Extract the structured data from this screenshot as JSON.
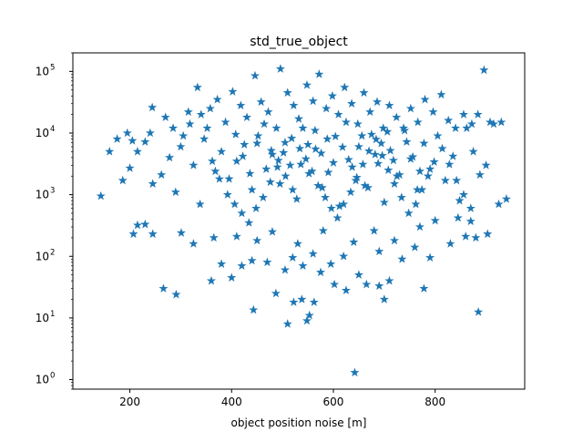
{
  "chart_data": {
    "type": "scatter",
    "title": "std_true_object",
    "xlabel": "object position noise [m]",
    "ylabel": "",
    "xlim": [
      88,
      976
    ],
    "ylim": [
      0.7,
      200000
    ],
    "yscale": "log",
    "grid": false,
    "marker": "star",
    "color": "#1f77b4",
    "x_ticks": [
      200,
      400,
      600,
      800
    ],
    "x_tick_labels": [
      "200",
      "400",
      "600",
      "800"
    ],
    "y_ticks": [
      1,
      10,
      100,
      1000,
      10000,
      100000
    ],
    "y_tick_labels": [
      {
        "base": "10",
        "exp": "0"
      },
      {
        "base": "10",
        "exp": "1"
      },
      {
        "base": "10",
        "exp": "2"
      },
      {
        "base": "10",
        "exp": "3"
      },
      {
        "base": "10",
        "exp": "4"
      },
      {
        "base": "10",
        "exp": "5"
      }
    ],
    "series": [
      {
        "points": [
          [
            642,
            1.3
          ],
          [
            510,
            8
          ],
          [
            548,
            9
          ],
          [
            553,
            11
          ],
          [
            443,
            13.5
          ],
          [
            885,
            12.5
          ],
          [
            266,
            30
          ],
          [
            291,
            24
          ],
          [
            522,
            18
          ],
          [
            538,
            20
          ],
          [
            562,
            18
          ],
          [
            625,
            28
          ],
          [
            700,
            20
          ],
          [
            778,
            30
          ],
          [
            487,
            25
          ],
          [
            602,
            35
          ],
          [
            665,
            35
          ],
          [
            690,
            33
          ],
          [
            360,
            40
          ],
          [
            400,
            45
          ],
          [
            650,
            50
          ],
          [
            710,
            40
          ],
          [
            505,
            60
          ],
          [
            575,
            55
          ],
          [
            540,
            70
          ],
          [
            595,
            75
          ],
          [
            420,
            70
          ],
          [
            380,
            75
          ],
          [
            470,
            80
          ],
          [
            520,
            95
          ],
          [
            620,
            100
          ],
          [
            560,
            110
          ],
          [
            440,
            85
          ],
          [
            690,
            120
          ],
          [
            735,
            90
          ],
          [
            760,
            140
          ],
          [
            790,
            95
          ],
          [
            830,
            160
          ],
          [
            880,
            200
          ],
          [
            903,
            230
          ],
          [
            230,
            330
          ],
          [
            245,
            230
          ],
          [
            301,
            240
          ],
          [
            325,
            160
          ],
          [
            207,
            230
          ],
          [
            215,
            320
          ],
          [
            365,
            200
          ],
          [
            410,
            210
          ],
          [
            450,
            180
          ],
          [
            480,
            250
          ],
          [
            530,
            160
          ],
          [
            580,
            260
          ],
          [
            640,
            170
          ],
          [
            680,
            260
          ],
          [
            720,
            180
          ],
          [
            770,
            300
          ],
          [
            800,
            380
          ],
          [
            860,
            210
          ],
          [
            845,
            420
          ],
          [
            870,
            370
          ],
          [
            925,
            700
          ],
          [
            940,
            850
          ],
          [
            143,
            950
          ],
          [
            186,
            1700
          ],
          [
            200,
            2700
          ],
          [
            215,
            5000
          ],
          [
            230,
            7200
          ],
          [
            245,
            1500
          ],
          [
            262,
            2100
          ],
          [
            278,
            4000
          ],
          [
            290,
            1100
          ],
          [
            305,
            9000
          ],
          [
            325,
            3000
          ],
          [
            338,
            700
          ],
          [
            352,
            12000
          ],
          [
            368,
            2400
          ],
          [
            380,
            5000
          ],
          [
            395,
            1800
          ],
          [
            410,
            3500
          ],
          [
            425,
            6500
          ],
          [
            440,
            1200
          ],
          [
            452,
            9000
          ],
          [
            468,
            2600
          ],
          [
            480,
            4500
          ],
          [
            495,
            1500
          ],
          [
            505,
            7000
          ],
          [
            515,
            3000
          ],
          [
            528,
            850
          ],
          [
            540,
            12000
          ],
          [
            552,
            2200
          ],
          [
            565,
            5500
          ],
          [
            578,
            1300
          ],
          [
            588,
            8000
          ],
          [
            600,
            3300
          ],
          [
            612,
            650
          ],
          [
            625,
            15000
          ],
          [
            637,
            2800
          ],
          [
            650,
            6000
          ],
          [
            662,
            1400
          ],
          [
            675,
            9500
          ],
          [
            688,
            3200
          ],
          [
            700,
            750
          ],
          [
            712,
            5200
          ],
          [
            725,
            2000
          ],
          [
            740,
            11000
          ],
          [
            752,
            3800
          ],
          [
            765,
            1200
          ],
          [
            778,
            6800
          ],
          [
            790,
            2600
          ],
          [
            805,
            9000
          ],
          [
            820,
            1700
          ],
          [
            835,
            4200
          ],
          [
            848,
            800
          ],
          [
            862,
            12000
          ],
          [
            875,
            5000
          ],
          [
            888,
            2100
          ],
          [
            900,
            3000
          ],
          [
            915,
            14000
          ],
          [
            930,
            15000
          ],
          [
            160,
            5000
          ],
          [
            175,
            8000
          ],
          [
            195,
            10000
          ],
          [
            205,
            7500
          ],
          [
            270,
            18000
          ],
          [
            285,
            12000
          ],
          [
            300,
            6000
          ],
          [
            315,
            22000
          ],
          [
            333,
            55000
          ],
          [
            340,
            20000
          ],
          [
            358,
            25000
          ],
          [
            372,
            35000
          ],
          [
            388,
            15000
          ],
          [
            402,
            47000
          ],
          [
            418,
            28000
          ],
          [
            430,
            18000
          ],
          [
            446,
            85000
          ],
          [
            458,
            32000
          ],
          [
            472,
            22000
          ],
          [
            488,
            12000
          ],
          [
            496,
            110000
          ],
          [
            510,
            45000
          ],
          [
            522,
            28000
          ],
          [
            532,
            17000
          ],
          [
            548,
            60000
          ],
          [
            560,
            33000
          ],
          [
            572,
            90000
          ],
          [
            586,
            25000
          ],
          [
            598,
            40000
          ],
          [
            610,
            20000
          ],
          [
            622,
            55000
          ],
          [
            636,
            30000
          ],
          [
            648,
            14000
          ],
          [
            660,
            45000
          ],
          [
            672,
            22000
          ],
          [
            686,
            32000
          ],
          [
            698,
            12000
          ],
          [
            710,
            28000
          ],
          [
            724,
            18000
          ],
          [
            738,
            12000
          ],
          [
            752,
            25000
          ],
          [
            766,
            15000
          ],
          [
            780,
            35000
          ],
          [
            796,
            22000
          ],
          [
            812,
            42000
          ],
          [
            826,
            16000
          ],
          [
            840,
            12000
          ],
          [
            856,
            20000
          ],
          [
            872,
            14000
          ],
          [
            884,
            20000
          ],
          [
            896,
            105000
          ],
          [
            908,
            15000
          ],
          [
            244,
            26000
          ],
          [
            240,
            10000
          ],
          [
            318,
            14000
          ],
          [
            346,
            8000
          ],
          [
            362,
            3500
          ],
          [
            376,
            1800
          ],
          [
            392,
            1000
          ],
          [
            406,
            700
          ],
          [
            420,
            500
          ],
          [
            434,
            350
          ],
          [
            448,
            600
          ],
          [
            462,
            900
          ],
          [
            476,
            1600
          ],
          [
            490,
            2800
          ],
          [
            502,
            4800
          ],
          [
            518,
            8200
          ],
          [
            534,
            5600
          ],
          [
            546,
            3800
          ],
          [
            558,
            2400
          ],
          [
            570,
            1400
          ],
          [
            584,
            900
          ],
          [
            596,
            600
          ],
          [
            608,
            420
          ],
          [
            620,
            700
          ],
          [
            634,
            1100
          ],
          [
            646,
            1900
          ],
          [
            658,
            3100
          ],
          [
            670,
            5100
          ],
          [
            684,
            7900
          ],
          [
            696,
            4300
          ],
          [
            708,
            2500
          ],
          [
            720,
            1500
          ],
          [
            734,
            900
          ],
          [
            748,
            500
          ],
          [
            762,
            700
          ],
          [
            774,
            1200
          ],
          [
            786,
            2000
          ],
          [
            798,
            3400
          ],
          [
            814,
            5600
          ],
          [
            828,
            3100
          ],
          [
            842,
            1700
          ],
          [
            856,
            1000
          ],
          [
            870,
            600
          ],
          [
            408,
            9500
          ],
          [
            422,
            4200
          ],
          [
            436,
            2200
          ],
          [
            450,
            6800
          ],
          [
            464,
            14000
          ],
          [
            478,
            5200
          ],
          [
            492,
            3600
          ],
          [
            506,
            2000
          ],
          [
            520,
            1200
          ],
          [
            536,
            3100
          ],
          [
            550,
            6500
          ],
          [
            564,
            11000
          ],
          [
            576,
            4700
          ],
          [
            590,
            2300
          ],
          [
            604,
            8800
          ],
          [
            618,
            5900
          ],
          [
            630,
            3700
          ],
          [
            644,
            1700
          ],
          [
            656,
            9000
          ],
          [
            668,
            1300
          ],
          [
            682,
            4500
          ],
          [
            694,
            6800
          ],
          [
            706,
            10500
          ],
          [
            718,
            3600
          ],
          [
            730,
            2100
          ],
          [
            744,
            7200
          ],
          [
            756,
            4100
          ],
          [
            770,
            2400
          ]
        ]
      }
    ]
  }
}
